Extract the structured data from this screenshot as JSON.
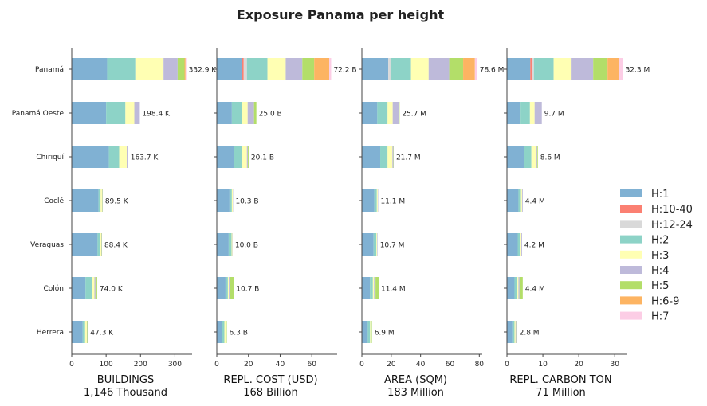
{
  "chart_data": {
    "type": "bar",
    "orientation": "horizontal",
    "stacked": true,
    "title": "Exposure Panama per height",
    "categories": [
      "Panamá",
      "Panamá Oeste",
      "Chiriquí",
      "Coclé",
      "Veraguas",
      "Colón",
      "Herrera"
    ],
    "series_names": [
      "H:1",
      "H:10-40",
      "H:12-24",
      "H:2",
      "H:3",
      "H:4",
      "H:5",
      "H:6-9",
      "H:7"
    ],
    "colors": {
      "H:1": "#80b1d3",
      "H:10-40": "#fb8072",
      "H:12-24": "#d9d9d9",
      "H:2": "#8dd3c7",
      "H:3": "#ffffb3",
      "H:4": "#bebada",
      "H:5": "#b3de69",
      "H:6-9": "#fdb462",
      "H:7": "#fccde5"
    },
    "legend_position": "right",
    "grid": false,
    "panels": [
      {
        "xlabel": "BUILDINGS",
        "subtitle": "1,146 Thousand",
        "xlim": [
          0,
          350
        ],
        "xticks": [
          0,
          100,
          200,
          300
        ],
        "totals_labels": [
          "332.9 K",
          "198.4 K",
          "163.7 K",
          "89.5 K",
          "88.4 K",
          "74.0 K",
          "47.3 K"
        ],
        "values": [
          [
            103,
            0,
            0,
            82,
            82,
            41,
            20,
            3,
            2
          ],
          [
            100,
            0,
            0,
            56,
            26,
            16,
            0,
            0,
            0
          ],
          [
            108,
            0,
            0,
            30,
            22,
            3,
            1,
            0,
            0
          ],
          [
            78,
            0,
            0,
            6,
            4,
            1,
            1,
            0,
            0
          ],
          [
            75,
            0,
            0,
            8,
            3,
            1,
            1,
            0,
            0
          ],
          [
            40,
            0,
            0,
            18,
            8,
            3,
            5,
            0,
            0
          ],
          [
            32,
            0,
            0,
            7,
            5,
            1,
            2,
            0,
            0
          ]
        ]
      },
      {
        "xlabel": "REPL. COST (USD)",
        "subtitle": "168 Billion",
        "xlim": [
          0,
          76
        ],
        "xticks": [
          0,
          20,
          40,
          60
        ],
        "totals_labels": [
          "72.2 B",
          "25.0 B",
          "20.1 B",
          "10.3 B",
          "10.0 B",
          "10.7 B",
          "6.3 B"
        ],
        "values": [
          [
            16,
            1,
            2,
            13,
            11.5,
            10.5,
            7.5,
            9.5,
            1.2
          ],
          [
            9.5,
            0,
            0,
            6.5,
            3.5,
            4,
            1.5,
            0,
            0
          ],
          [
            11,
            0,
            0,
            5,
            3,
            0.6,
            0.5,
            0,
            0
          ],
          [
            8,
            0,
            0,
            1.5,
            0.6,
            0.2,
            0,
            0,
            0
          ],
          [
            7.5,
            0,
            0,
            1.8,
            0.5,
            0.2,
            0,
            0,
            0
          ],
          [
            5.5,
            0,
            0,
            1.5,
            0.6,
            0.5,
            2.6,
            0,
            0
          ],
          [
            3.3,
            0,
            0,
            1.5,
            0.8,
            0.3,
            0.4,
            0,
            0
          ]
        ]
      },
      {
        "xlabel": "AREA (SQM)",
        "subtitle": "183 Million",
        "xlim": [
          0,
          82
        ],
        "xticks": [
          0,
          20,
          40,
          60,
          80
        ],
        "totals_labels": [
          "78.6 M",
          "25.7 M",
          "21.7 M",
          "11.1 M",
          "10.7 M",
          "11.4 M",
          "6.9 M"
        ],
        "values": [
          [
            18,
            0,
            1.5,
            14,
            12,
            14,
            9.5,
            8,
            1.6
          ],
          [
            10.5,
            0,
            0,
            7,
            3.5,
            4.5,
            0.2,
            0,
            0
          ],
          [
            12.5,
            0,
            0,
            5,
            3.3,
            0.7,
            0.2,
            0,
            0
          ],
          [
            8.5,
            0,
            0,
            1.7,
            0.6,
            0.3,
            0,
            0,
            0
          ],
          [
            8,
            0,
            0,
            1.9,
            0.5,
            0.3,
            0,
            0,
            0
          ],
          [
            5.5,
            0,
            0,
            2,
            0.8,
            1,
            2.1,
            0,
            0
          ],
          [
            4,
            0,
            0,
            1.6,
            0.8,
            0.2,
            0.3,
            0,
            0
          ]
        ]
      },
      {
        "xlabel": "REPL. CARBON TON",
        "subtitle": "71 Million",
        "xlim": [
          0,
          33.5
        ],
        "xticks": [
          0,
          10,
          20,
          30
        ],
        "totals_labels": [
          "32.3 M",
          "9.7 M",
          "8.6 M",
          "4.4 M",
          "4.2 M",
          "4.4 M",
          "2.8 M"
        ],
        "values": [
          [
            6.5,
            0.4,
            0.6,
            5.5,
            5,
            6,
            4,
            3.3,
            1
          ],
          [
            3.8,
            0,
            0,
            2.6,
            1.3,
            2,
            0,
            0,
            0
          ],
          [
            4.7,
            0,
            0,
            2.1,
            1.3,
            0.3,
            0.2,
            0,
            0
          ],
          [
            3.2,
            0,
            0,
            0.7,
            0.3,
            0.2,
            0,
            0,
            0
          ],
          [
            3,
            0,
            0,
            0.8,
            0.2,
            0.2,
            0,
            0,
            0
          ],
          [
            2.1,
            0,
            0,
            0.8,
            0.3,
            0.3,
            0.9,
            0,
            0
          ],
          [
            1.5,
            0,
            0,
            0.6,
            0.3,
            0.2,
            0.2,
            0,
            0
          ]
        ]
      }
    ]
  }
}
